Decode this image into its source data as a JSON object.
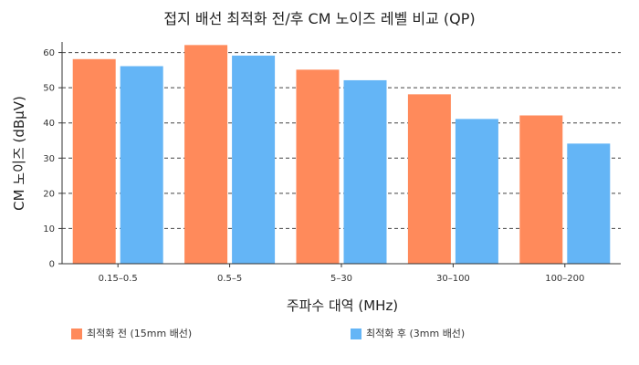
{
  "chart_data": {
    "type": "bar",
    "title": "접지 배선 최적화 전/후 CM 노이즈 레벨 비교 (QP)",
    "xlabel": "주파수 대역 (MHz)",
    "ylabel": "CM 노이즈 (dBμV)",
    "categories": [
      "0.15–0.5",
      "0.5–5",
      "5–30",
      "30–100",
      "100–200"
    ],
    "series": [
      {
        "name": "최적화 전 (15mm 배선)",
        "color": "#FF8A5B",
        "values": [
          58,
          62,
          55,
          48,
          42
        ]
      },
      {
        "name": "최적화 후 (3mm 배선)",
        "color": "#64B5F6",
        "values": [
          56,
          59,
          52,
          41,
          34
        ]
      }
    ],
    "ylim": [
      0,
      63
    ],
    "yticks": [
      0,
      10,
      20,
      30,
      40,
      50,
      60
    ],
    "grid": "horizontal dashed",
    "legend_position": "bottom"
  }
}
